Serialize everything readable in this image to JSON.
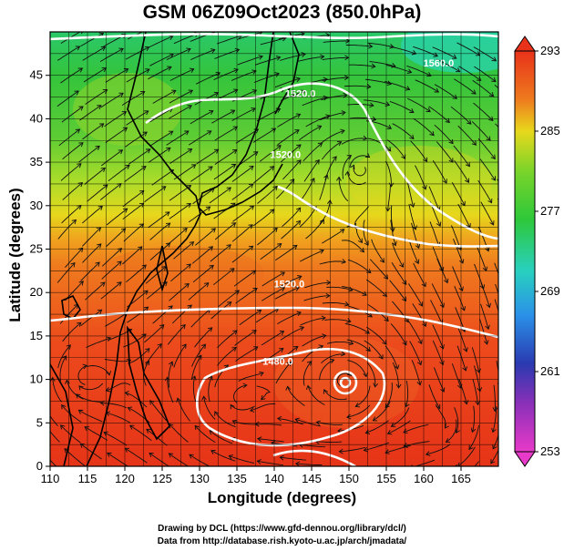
{
  "title": "GSM 06Z09Oct2023 (850.0hPa)",
  "x_axis_label": "Longitude (degrees)",
  "y_axis_label": "Latitude  (degrees)",
  "credit_line_1": "Drawing by DCL (https://www.gfd-dennou.org/library/dcl/)",
  "credit_line_2": "Data from http://database.rish.kyoto-u.ac.jp/arch/jmadata/",
  "map_data": {
    "type": "map",
    "variable": "850hPa temperature (shaded), geopotential height (contours), wind streamlines",
    "lon_range": [
      110,
      170
    ],
    "lat_range": [
      0,
      50
    ],
    "x_ticks": [
      "110",
      "115",
      "120",
      "125",
      "130",
      "135",
      "140",
      "145",
      "150",
      "155",
      "160",
      "165"
    ],
    "y_ticks": [
      "0",
      "5",
      "10",
      "15",
      "20",
      "25",
      "30",
      "35",
      "40",
      "45"
    ],
    "colorbar_ticks": [
      "293",
      "285",
      "277",
      "269",
      "261",
      "253"
    ],
    "colorbar_range": [
      253,
      293
    ],
    "contour_labels": [
      {
        "text": "1520.0",
        "lon": 143.5,
        "lat": 42.5
      },
      {
        "text": "1520.0",
        "lon": 142.0,
        "lat": 20.6
      },
      {
        "text": "1480.0",
        "lon": 140.5,
        "lat": 11.7
      },
      {
        "text": "1520.0",
        "lon": 141.5,
        "lat": 35.5
      },
      {
        "text": "1560.0",
        "lon": 162,
        "lat": 46
      }
    ],
    "colors": {
      "warm": "#e83a1a",
      "orange": "#f29a1e",
      "yellow": "#e8e01c",
      "green": "#3cc83c",
      "cyan": "#2ad3c8",
      "blue": "#3a8ae8",
      "navy": "#2a2aa8",
      "magenta": "#e040c8"
    }
  }
}
